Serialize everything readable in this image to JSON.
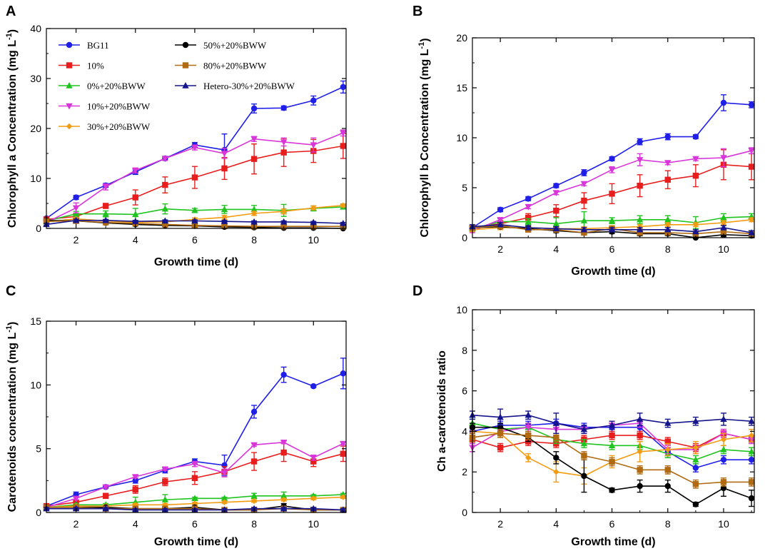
{
  "colors": {
    "BG11": "#1f1fe8",
    "10%": "#e81e1e",
    "0%+20%BWW": "#1fc41f",
    "10%+20%BWW": "#d836d8",
    "30%+20%BWW": "#f39c12",
    "50%+20%BWW": "#000000",
    "80%+20%BWW": "#b06a12",
    "Hetero-30%+20%BWW": "#14148c"
  },
  "legend": [
    {
      "name": "BG11",
      "marker": "circle"
    },
    {
      "name": "10%",
      "marker": "square"
    },
    {
      "name": "0%+20%BWW",
      "marker": "triangle"
    },
    {
      "name": "10%+20%BWW",
      "marker": "triangle-down"
    },
    {
      "name": "30%+20%BWW",
      "marker": "diamond"
    },
    {
      "name": "50%+20%BWW",
      "marker": "circle"
    },
    {
      "name": "80%+20%BWW",
      "marker": "square"
    },
    {
      "name": "Hetero-30%+20%BWW",
      "marker": "triangle"
    }
  ],
  "chart_data": [
    {
      "panel": "A",
      "type": "line",
      "xlabel": "Growth time (d)",
      "ylabel": "Chlorophyll a Concentration (mg L",
      "ylabel_sup": "-1",
      "ylabel_end": ")",
      "xlim": [
        1,
        11.1
      ],
      "ylim": [
        0,
        40
      ],
      "xticks": [
        2,
        4,
        6,
        8,
        10
      ],
      "yticks": [
        0,
        10,
        20,
        30,
        40
      ],
      "x": [
        1,
        2,
        3,
        4,
        5,
        6,
        7,
        8,
        9,
        10,
        11
      ],
      "series": [
        {
          "name": "BG11",
          "values": [
            2.0,
            6.2,
            8.6,
            11.3,
            14.0,
            16.7,
            15.7,
            24.0,
            24.1,
            25.6,
            28.3
          ],
          "errors": [
            0.3,
            0.4,
            0.4,
            0.5,
            0.4,
            0.5,
            3.2,
            0.9,
            0.4,
            0.9,
            1.2
          ]
        },
        {
          "name": "10%",
          "values": [
            1.8,
            2.4,
            4.5,
            6.2,
            8.7,
            10.2,
            12.0,
            13.9,
            15.2,
            15.5,
            16.5
          ],
          "errors": [
            0.3,
            0.4,
            0.5,
            1.5,
            1.6,
            2.2,
            2.2,
            3.0,
            2.8,
            2.3,
            2.5
          ]
        },
        {
          "name": "0%+20%BWW",
          "values": [
            1.5,
            2.9,
            2.9,
            2.8,
            3.9,
            3.6,
            3.8,
            3.8,
            3.6,
            4.0,
            4.3
          ],
          "errors": [
            0.3,
            0.5,
            0.6,
            1.2,
            1.0,
            0.4,
            0.8,
            0.8,
            1.2,
            0.5,
            0.4
          ]
        },
        {
          "name": "10%+20%BWW",
          "values": [
            1.2,
            4.1,
            8.3,
            11.6,
            14.0,
            16.2,
            15.0,
            17.9,
            17.3,
            16.7,
            19.1
          ],
          "errors": [
            0.3,
            1.0,
            0.6,
            0.5,
            0.4,
            0.5,
            1.0,
            0.5,
            0.8,
            1.4,
            0.6
          ]
        },
        {
          "name": "30%+20%BWW",
          "values": [
            1.3,
            1.9,
            1.5,
            1.2,
            1.3,
            1.8,
            2.2,
            3.0,
            3.4,
            4.1,
            4.6
          ],
          "errors": [
            0.3,
            0.3,
            0.3,
            0.3,
            0.3,
            0.3,
            0.4,
            0.4,
            0.5,
            0.4,
            0.3
          ]
        },
        {
          "name": "50%+20%BWW",
          "values": [
            1.6,
            1.5,
            1.1,
            0.8,
            0.6,
            0.5,
            0.3,
            0.2,
            0.1,
            0.1,
            0.0
          ],
          "errors": [
            0.3,
            0.3,
            0.3,
            0.3,
            0.3,
            0.3,
            0.3,
            0.3,
            0.3,
            0.3,
            0.3
          ]
        },
        {
          "name": "80%+20%BWW",
          "values": [
            1.4,
            1.5,
            1.2,
            1.0,
            0.8,
            0.6,
            0.5,
            0.4,
            0.4,
            0.4,
            0.4
          ],
          "errors": [
            0.3,
            0.3,
            0.3,
            0.3,
            0.3,
            0.3,
            0.3,
            0.3,
            0.3,
            0.3,
            0.3
          ]
        },
        {
          "name": "Hetero-30%+20%BWW",
          "values": [
            0.8,
            1.6,
            1.6,
            1.4,
            1.5,
            1.5,
            1.4,
            1.3,
            1.3,
            1.2,
            1.0
          ],
          "errors": [
            0.2,
            0.2,
            0.2,
            0.2,
            0.2,
            0.2,
            0.2,
            0.2,
            0.2,
            0.2,
            0.2
          ]
        }
      ]
    },
    {
      "panel": "B",
      "type": "line",
      "xlabel": "Growth time (d)",
      "ylabel": "Chlorophyll b Concentration (mg L",
      "ylabel_sup": "-1",
      "ylabel_end": ")",
      "xlim": [
        1,
        11.1
      ],
      "ylim": [
        0,
        20
      ],
      "xticks": [
        2,
        4,
        6,
        8,
        10
      ],
      "yticks": [
        0,
        5,
        10,
        15,
        20
      ],
      "x": [
        1,
        2,
        3,
        4,
        5,
        6,
        7,
        8,
        9,
        10,
        11
      ],
      "series": [
        {
          "name": "BG11",
          "values": [
            1.0,
            2.8,
            3.9,
            5.2,
            6.5,
            7.9,
            9.6,
            10.1,
            10.1,
            13.5,
            13.3
          ],
          "errors": [
            0.2,
            0.2,
            0.2,
            0.2,
            0.3,
            0.2,
            0.3,
            0.3,
            0.2,
            0.8,
            0.3
          ]
        },
        {
          "name": "10%",
          "values": [
            1.0,
            1.4,
            2.0,
            2.7,
            3.7,
            4.4,
            5.2,
            5.8,
            6.2,
            7.3,
            7.1
          ],
          "errors": [
            0.2,
            0.3,
            0.4,
            0.6,
            0.8,
            1.0,
            1.1,
            0.9,
            1.1,
            1.5,
            1.3
          ]
        },
        {
          "name": "0%+20%BWW",
          "values": [
            0.9,
            1.6,
            1.6,
            1.4,
            1.7,
            1.7,
            1.8,
            1.8,
            1.5,
            2.0,
            2.1
          ],
          "errors": [
            0.2,
            0.3,
            0.3,
            0.6,
            0.9,
            0.3,
            0.4,
            0.4,
            0.6,
            0.4,
            0.3
          ]
        },
        {
          "name": "10%+20%BWW",
          "values": [
            0.7,
            1.8,
            3.1,
            4.5,
            5.4,
            6.8,
            7.8,
            7.5,
            7.9,
            8.0,
            8.7
          ],
          "errors": [
            0.2,
            0.2,
            0.2,
            0.2,
            0.2,
            0.3,
            0.6,
            0.2,
            0.2,
            0.9,
            0.3
          ]
        },
        {
          "name": "30%+20%BWW",
          "values": [
            0.8,
            1.0,
            1.0,
            0.9,
            0.9,
            1.0,
            1.1,
            1.3,
            1.3,
            1.5,
            1.8
          ],
          "errors": [
            0.2,
            0.2,
            0.2,
            0.2,
            0.2,
            0.2,
            0.2,
            0.2,
            0.2,
            0.2,
            0.2
          ]
        },
        {
          "name": "50%+20%BWW",
          "values": [
            1.0,
            1.1,
            0.9,
            0.7,
            0.5,
            0.6,
            0.4,
            0.4,
            0.0,
            0.3,
            0.2
          ],
          "errors": [
            0.2,
            0.2,
            0.2,
            0.2,
            0.2,
            0.2,
            0.2,
            0.2,
            0.2,
            0.2,
            0.2
          ]
        },
        {
          "name": "80%+20%BWW",
          "values": [
            1.0,
            1.2,
            0.8,
            0.8,
            0.5,
            0.9,
            0.5,
            0.5,
            0.4,
            0.6,
            0.4
          ],
          "errors": [
            0.2,
            0.3,
            0.2,
            0.2,
            0.2,
            0.2,
            0.2,
            0.2,
            0.2,
            0.2,
            0.2
          ]
        },
        {
          "name": "Hetero-30%+20%BWW",
          "values": [
            1.1,
            1.3,
            1.0,
            0.9,
            0.8,
            0.8,
            0.8,
            0.8,
            0.6,
            1.0,
            0.5
          ],
          "errors": [
            0.2,
            0.2,
            0.2,
            0.2,
            0.2,
            0.2,
            0.2,
            0.2,
            0.2,
            0.2,
            0.2
          ]
        }
      ]
    },
    {
      "panel": "C",
      "type": "line",
      "xlabel": "Growth time (d)",
      "ylabel": "Carotenoids concentration (mg L",
      "ylabel_sup": "-1",
      "ylabel_end": ")",
      "xlim": [
        1,
        11.1
      ],
      "ylim": [
        0,
        15
      ],
      "xticks": [
        2,
        4,
        6,
        8,
        10
      ],
      "yticks": [
        0,
        5,
        10,
        15
      ],
      "x": [
        1,
        2,
        3,
        4,
        5,
        6,
        7,
        8,
        9,
        10,
        11
      ],
      "series": [
        {
          "name": "BG11",
          "values": [
            0.5,
            1.4,
            2.0,
            2.5,
            3.3,
            4.0,
            3.7,
            7.9,
            10.8,
            9.9,
            10.9
          ],
          "errors": [
            0.1,
            0.2,
            0.1,
            0.2,
            0.2,
            0.2,
            0.8,
            0.5,
            0.6,
            0.1,
            1.2
          ]
        },
        {
          "name": "10%",
          "values": [
            0.5,
            0.8,
            1.3,
            1.8,
            2.4,
            2.7,
            3.2,
            4.0,
            4.7,
            4.0,
            4.6
          ],
          "errors": [
            0.1,
            0.1,
            0.2,
            0.3,
            0.3,
            0.5,
            0.4,
            0.7,
            0.7,
            0.4,
            0.6
          ]
        },
        {
          "name": "0%+20%BWW",
          "values": [
            0.4,
            0.6,
            0.6,
            0.8,
            1.0,
            1.1,
            1.1,
            1.3,
            1.3,
            1.3,
            1.4
          ],
          "errors": [
            0.1,
            0.1,
            0.1,
            0.4,
            0.4,
            0.1,
            0.1,
            0.2,
            0.3,
            0.1,
            0.1
          ]
        },
        {
          "name": "10%+20%BWW",
          "values": [
            0.4,
            1.1,
            2.0,
            2.8,
            3.4,
            3.8,
            3.1,
            5.3,
            5.5,
            4.3,
            5.4
          ],
          "errors": [
            0.1,
            0.1,
            0.1,
            0.1,
            0.1,
            0.2,
            0.3,
            0.1,
            0.1,
            0.2,
            0.1
          ]
        },
        {
          "name": "30%+20%BWW",
          "values": [
            0.4,
            0.5,
            0.5,
            0.6,
            0.6,
            0.7,
            0.8,
            0.9,
            1.0,
            1.1,
            1.2
          ],
          "errors": [
            0.1,
            0.1,
            0.1,
            0.1,
            0.1,
            0.1,
            0.1,
            0.1,
            0.1,
            0.1,
            0.1
          ]
        },
        {
          "name": "50%+20%BWW",
          "values": [
            0.4,
            0.4,
            0.4,
            0.3,
            0.3,
            0.4,
            0.2,
            0.2,
            0.5,
            0.2,
            0.2
          ],
          "errors": [
            0.1,
            0.1,
            0.1,
            0.1,
            0.1,
            0.1,
            0.1,
            0.1,
            0.2,
            0.1,
            0.1
          ]
        },
        {
          "name": "80%+20%BWW",
          "values": [
            0.4,
            0.4,
            0.3,
            0.3,
            0.3,
            0.3,
            0.2,
            0.2,
            0.3,
            0.2,
            0.2
          ],
          "errors": [
            0.1,
            0.1,
            0.1,
            0.1,
            0.1,
            0.1,
            0.1,
            0.1,
            0.1,
            0.1,
            0.1
          ]
        },
        {
          "name": "Hetero-30%+20%BWW",
          "values": [
            0.3,
            0.3,
            0.3,
            0.2,
            0.2,
            0.2,
            0.2,
            0.3,
            0.3,
            0.3,
            0.2
          ],
          "errors": [
            0.1,
            0.1,
            0.1,
            0.1,
            0.1,
            0.1,
            0.1,
            0.1,
            0.1,
            0.1,
            0.1
          ]
        }
      ]
    },
    {
      "panel": "D",
      "type": "line",
      "xlabel": "Growth time (d)",
      "ylabel": "Ch a-carotenoids ratio",
      "ylabel_sup": "",
      "ylabel_end": "",
      "xlim": [
        1,
        11.1
      ],
      "ylim": [
        0,
        10
      ],
      "xticks": [
        2,
        4,
        6,
        8,
        10
      ],
      "yticks": [
        0,
        2,
        4,
        6,
        8,
        10
      ],
      "x": [
        1,
        2,
        3,
        4,
        5,
        6,
        7,
        8,
        9,
        10,
        11
      ],
      "series": [
        {
          "name": "BG11",
          "values": [
            4.0,
            4.3,
            4.3,
            4.4,
            4.2,
            4.2,
            4.2,
            3.0,
            2.2,
            2.6,
            2.6
          ],
          "errors": [
            0.2,
            0.2,
            0.2,
            0.2,
            0.2,
            0.2,
            0.2,
            0.3,
            0.2,
            0.2,
            0.2
          ]
        },
        {
          "name": "10%",
          "values": [
            3.6,
            3.2,
            3.5,
            3.4,
            3.6,
            3.8,
            3.8,
            3.5,
            3.2,
            3.9,
            3.6
          ],
          "errors": [
            0.2,
            0.2,
            0.2,
            0.2,
            0.2,
            0.2,
            0.2,
            0.2,
            0.2,
            0.2,
            0.2
          ]
        },
        {
          "name": "0%+20%BWW",
          "values": [
            4.4,
            4.1,
            4.2,
            3.6,
            3.4,
            3.3,
            3.3,
            2.9,
            2.6,
            3.1,
            3.0
          ],
          "errors": [
            0.2,
            0.2,
            0.2,
            0.2,
            0.2,
            0.2,
            0.2,
            0.2,
            0.2,
            0.2,
            0.2
          ]
        },
        {
          "name": "10%+20%BWW",
          "values": [
            3.2,
            4.0,
            4.2,
            4.1,
            4.1,
            4.3,
            4.4,
            3.1,
            3.1,
            3.9,
            3.6
          ],
          "errors": [
            0.2,
            0.2,
            0.2,
            0.2,
            0.2,
            0.2,
            0.2,
            0.2,
            0.2,
            0.2,
            0.2
          ]
        },
        {
          "name": "30%+20%BWW",
          "values": [
            4.0,
            3.9,
            2.7,
            2.0,
            1.8,
            2.5,
            3.0,
            3.1,
            3.2,
            3.6,
            3.8
          ],
          "errors": [
            0.2,
            0.2,
            0.2,
            0.5,
            0.4,
            0.3,
            0.5,
            0.3,
            0.3,
            0.3,
            0.3
          ]
        },
        {
          "name": "50%+20%BWW",
          "values": [
            4.2,
            4.2,
            3.7,
            2.7,
            1.8,
            1.1,
            1.3,
            1.3,
            0.4,
            1.2,
            0.7
          ],
          "errors": [
            0.2,
            0.2,
            0.2,
            0.3,
            0.8,
            0.1,
            0.3,
            0.3,
            0.1,
            0.4,
            0.4
          ]
        },
        {
          "name": "80%+20%BWW",
          "values": [
            3.7,
            3.9,
            3.8,
            3.7,
            2.8,
            2.5,
            2.1,
            2.1,
            1.4,
            1.5,
            1.5
          ],
          "errors": [
            0.2,
            0.2,
            0.2,
            0.2,
            0.2,
            0.2,
            0.2,
            0.2,
            0.2,
            0.2,
            0.2
          ]
        },
        {
          "name": "Hetero-30%+20%BWW",
          "values": [
            4.8,
            4.7,
            4.8,
            4.4,
            4.1,
            4.3,
            4.6,
            4.4,
            4.5,
            4.6,
            4.5
          ],
          "errors": [
            0.2,
            0.4,
            0.2,
            0.5,
            0.2,
            0.2,
            0.3,
            0.2,
            0.2,
            0.3,
            0.2
          ]
        }
      ]
    }
  ]
}
